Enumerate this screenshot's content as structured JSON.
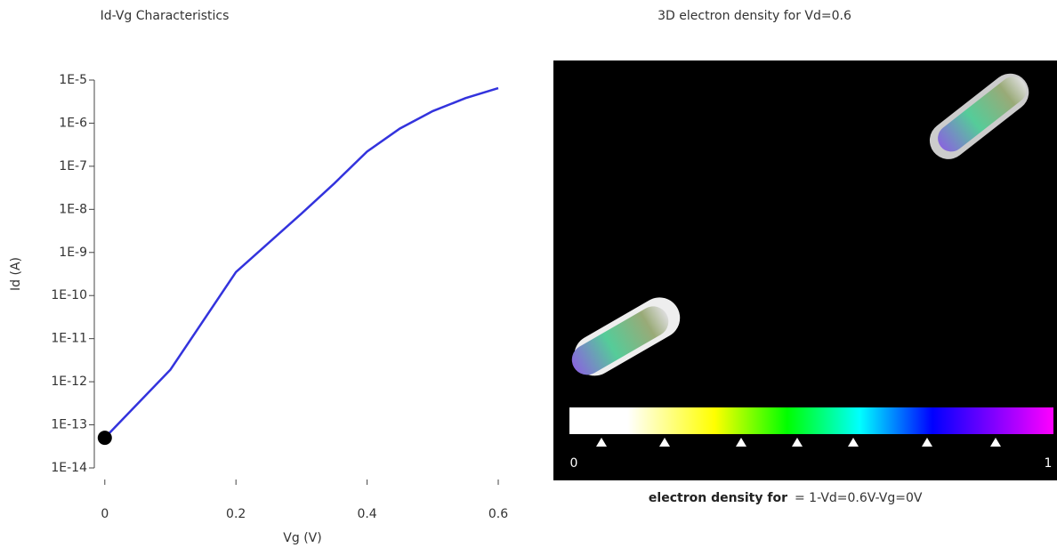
{
  "chart_data": {
    "type": "line",
    "title": "Id-Vg Characteristics",
    "xlabel": "Vg (V)",
    "ylabel": "Id (A)",
    "x": [
      0,
      0.1,
      0.2,
      0.3,
      0.35,
      0.4,
      0.45,
      0.5,
      0.55,
      0.6
    ],
    "values": [
      5e-14,
      1.9e-12,
      3.5e-10,
      8e-09,
      4e-08,
      2.2e-07,
      7.5e-07,
      1.9e-06,
      3.8e-06,
      6.5e-06
    ],
    "color": "#3333dd",
    "log_y": true,
    "marker": {
      "x": 0,
      "y": 5e-14,
      "color": "#000000"
    },
    "xlim": [
      -0.016,
      0.6
    ],
    "xticks": [
      0,
      0.2,
      0.4,
      0.6
    ],
    "ylim": [
      1e-14,
      1e-05
    ],
    "yticks": [
      {
        "value": 1e-14,
        "label": "1E-14"
      },
      {
        "value": 1e-13,
        "label": "1E-13"
      },
      {
        "value": 1e-12,
        "label": "1E-12"
      },
      {
        "value": 1e-11,
        "label": "1E-11"
      },
      {
        "value": 1e-10,
        "label": "1E-10"
      },
      {
        "value": 1e-09,
        "label": "1E-9"
      },
      {
        "value": 1e-08,
        "label": "1E-8"
      },
      {
        "value": 1e-07,
        "label": "1E-7"
      },
      {
        "value": 1e-06,
        "label": "1E-6"
      },
      {
        "value": 1e-05,
        "label": "1E-5"
      }
    ]
  },
  "visualization": {
    "title": "3D electron density for Vd=0.6",
    "colorbar_min": "0",
    "colorbar_max": "1",
    "caption_bold": "electron density for",
    "caption": "= 1-Vd=0.6V-Vg=0V"
  }
}
